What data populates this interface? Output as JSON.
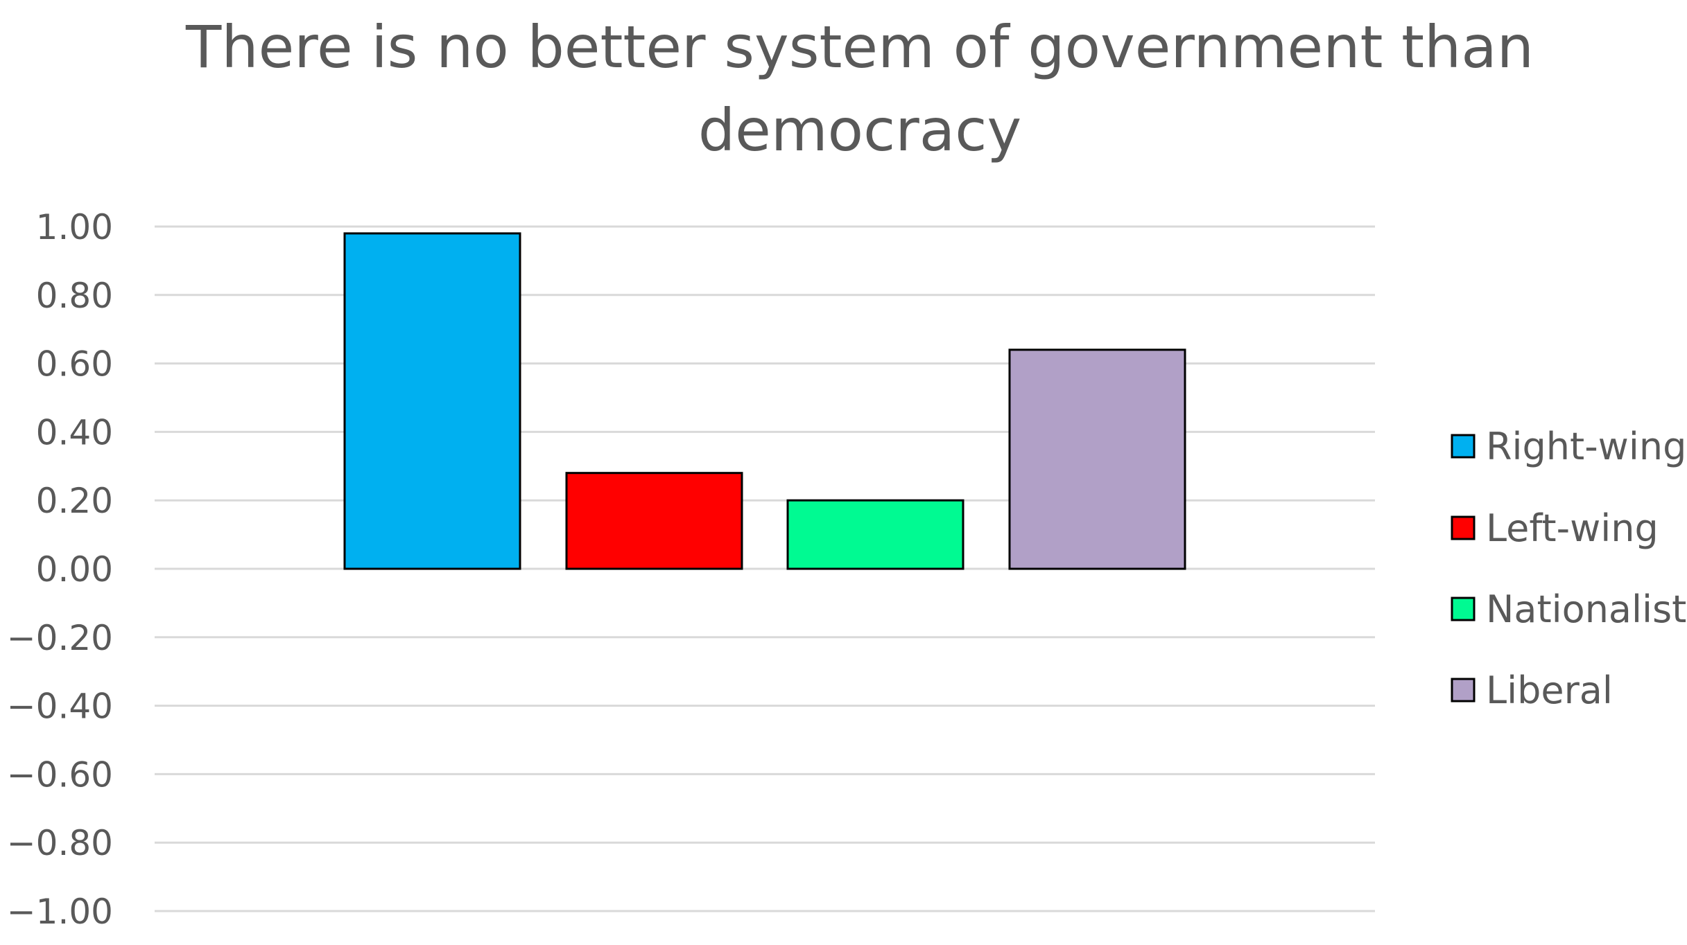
{
  "chart_data": {
    "type": "bar",
    "title": "There is no better system of government than\ndemocracy",
    "xlabel": "",
    "ylabel": "",
    "ylim": [
      -1.0,
      1.0
    ],
    "yticks": [
      "1.00",
      "0.80",
      "0.60",
      "0.40",
      "0.20",
      "0.00",
      "−0.20",
      "−0.40",
      "−0.60",
      "−0.80",
      "−1.00"
    ],
    "ytick_values": [
      1.0,
      0.8,
      0.6,
      0.4,
      0.2,
      0.0,
      -0.2,
      -0.4,
      -0.6,
      -0.8,
      -1.0
    ],
    "grid": true,
    "legend_position": "right",
    "series": [
      {
        "name": "Right-wing",
        "value": 0.98,
        "color": "#00B0F0"
      },
      {
        "name": "Left-wing",
        "value": 0.28,
        "color": "#FF0000"
      },
      {
        "name": "Nationalist",
        "value": 0.2,
        "color": "#00FA92"
      },
      {
        "name": "Liberal",
        "value": 0.64,
        "color": "#B1A0C7"
      }
    ]
  }
}
